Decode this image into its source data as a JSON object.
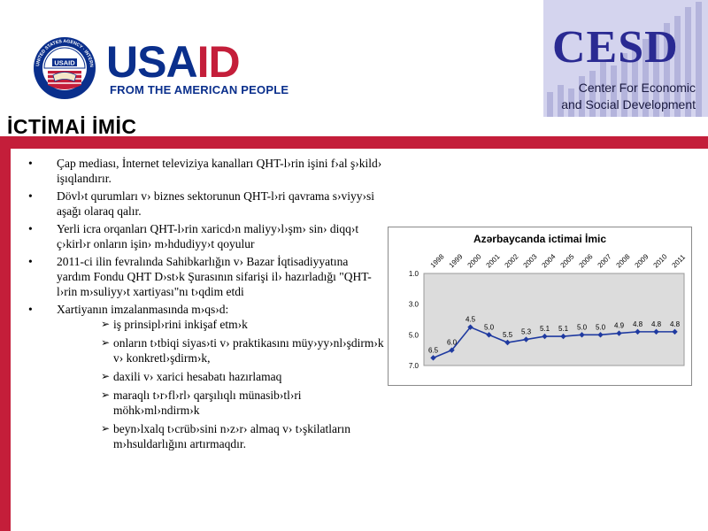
{
  "logos": {
    "usaid": {
      "word_blue": "USA",
      "word_red": "ID",
      "tagline": "FROM THE AMERICAN PEOPLE",
      "seal_text": "UNITED STATES AGENCY · INTERNATIONAL DEVELOPMENT",
      "seal_inner": "USAID",
      "colors": {
        "blue": "#0a2f8c",
        "red": "#c41e3a"
      }
    },
    "cesd": {
      "word": "CESD",
      "line1": "Center For Economic",
      "line2": "and Social Development",
      "colors": {
        "background": "#d4d4ee",
        "text": "#2a2a92"
      }
    }
  },
  "slide": {
    "title": "İCTİMAİ İMİC",
    "accent_color": "#c41e3a",
    "bullets": [
      "Çap mediası, İnternet televiziya kanalları QHT-l›rin işini f›al ş›kild› işıqlandırır.",
      "Dövl›t qurumları v› biznes sektorunun QHT-l›ri qavrama s›viyy›si aşağı olaraq qalır.",
      "Yerli icra orqanları QHT-l›rin xaricd›n maliyy›l›şm› sin› diqq›t ç›kirl›r onların işin› m›hdudiyy›t qoyulur",
      "2011-ci ilin fevralında Sahibkarlığın v› Bazar İqtisadiyyatına yardım Fondu QHT D›st›k Şurasının sifarişi il› hazırladığı \"QHT-l›rin m›suliyy›t xartiyası\"nı t›qdim etdi",
      "Xartiyanın imzalanmasında m›qs›d:"
    ],
    "sub_bullets": [
      "iş prinsipl›rini inkişaf etm›k",
      "onların t›tbiqi siyas›ti v› praktikasını müy›yy›nl›şdirm›k v› konkretl›şdirm›k,",
      "daxili v› xarici hesabatı hazırlamaq",
      "maraqlı t›r›fl›rl› qarşılıqlı münasib›tl›ri möhk›ml›ndirm›k",
      "beyn›lxalq t›crüb›sini n›z›r› almaq v› t›şkilatların m›hsuldarlığını artırmaqdır."
    ]
  },
  "chart_data": {
    "type": "line",
    "title": "Azərbaycanda ictimai İmic",
    "x": [
      "1998",
      "1999",
      "2000",
      "2001",
      "2002",
      "2003",
      "2004",
      "2005",
      "2006",
      "2007",
      "2008",
      "2009",
      "2010",
      "2011"
    ],
    "series": [
      {
        "values": [
          6.5,
          6.0,
          4.5,
          5.0,
          5.5,
          5.3,
          5.1,
          5.1,
          5.0,
          5.0,
          4.9,
          4.8,
          4.8,
          4.8
        ],
        "labels": [
          "6.5",
          "6.0",
          "4.5",
          "5.0",
          "5.5",
          "5.3",
          "5.1",
          "5.1",
          "5.0",
          "5.0",
          "4.9",
          "4.8",
          "4.8",
          "4.8"
        ]
      }
    ],
    "y_ticks": [
      "1.0",
      "3.0",
      "5.0",
      "7.0"
    ],
    "y_tick_values": [
      1,
      3,
      5,
      7
    ],
    "ylim": [
      1,
      7
    ],
    "y_inverted": true,
    "plot_background": "#dcdcdc",
    "line_color": "#1f3aa0",
    "grid": false,
    "legend": "none"
  }
}
